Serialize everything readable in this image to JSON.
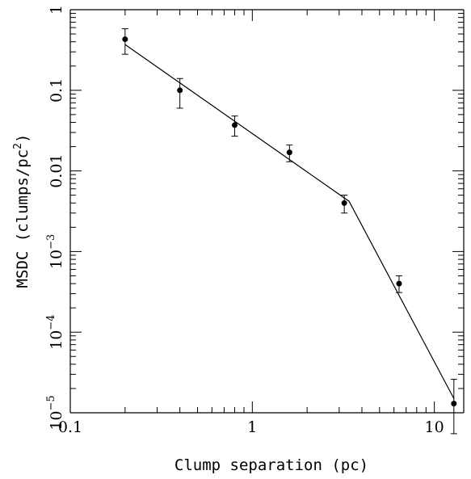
{
  "chart_data": {
    "type": "scatter",
    "xlabel": "Clump separation (pc)",
    "ylabel": "MSDC (clumps/pc",
    "ylabel_sup": "2",
    "ylabel_tail": ")",
    "xscale": "log",
    "yscale": "log",
    "xlim": [
      0.1,
      14.5
    ],
    "ylim": [
      1e-05,
      1
    ],
    "x_tick_labels": [
      {
        "value": 0.1,
        "label": "0.1"
      },
      {
        "value": 1,
        "label": "1"
      },
      {
        "value": 10,
        "label": "10"
      }
    ],
    "y_tick_labels": [
      {
        "value": 1,
        "base": "1",
        "exp": ""
      },
      {
        "value": 0.1,
        "base": "0.1",
        "exp": ""
      },
      {
        "value": 0.01,
        "base": "0.01",
        "exp": ""
      },
      {
        "value": 0.001,
        "base": "10",
        "exp": "−3"
      },
      {
        "value": 0.0001,
        "base": "10",
        "exp": "−4"
      },
      {
        "value": 1e-05,
        "base": "10",
        "exp": "−5"
      }
    ],
    "points": [
      {
        "x": 0.2,
        "y": 0.43,
        "err_low": 0.28,
        "err_high": 0.58
      },
      {
        "x": 0.4,
        "y": 0.1,
        "err_low": 0.06,
        "err_high": 0.14
      },
      {
        "x": 0.8,
        "y": 0.037,
        "err_low": 0.027,
        "err_high": 0.048
      },
      {
        "x": 1.6,
        "y": 0.017,
        "err_low": 0.013,
        "err_high": 0.021
      },
      {
        "x": 3.2,
        "y": 0.004,
        "err_low": 0.003,
        "err_high": 0.005
      },
      {
        "x": 6.4,
        "y": 0.0004,
        "err_low": 0.00031,
        "err_high": 0.0005
      },
      {
        "x": 12.8,
        "y": 1.3e-05,
        "err_low": 5.5e-06,
        "err_high": 2.6e-05
      }
    ],
    "fit_line": [
      {
        "x": 0.2,
        "y": 0.37
      },
      {
        "x": 3.4,
        "y": 0.0042
      },
      {
        "x": 12.8,
        "y": 1.5e-05
      }
    ],
    "grid": false,
    "legend": "none"
  }
}
